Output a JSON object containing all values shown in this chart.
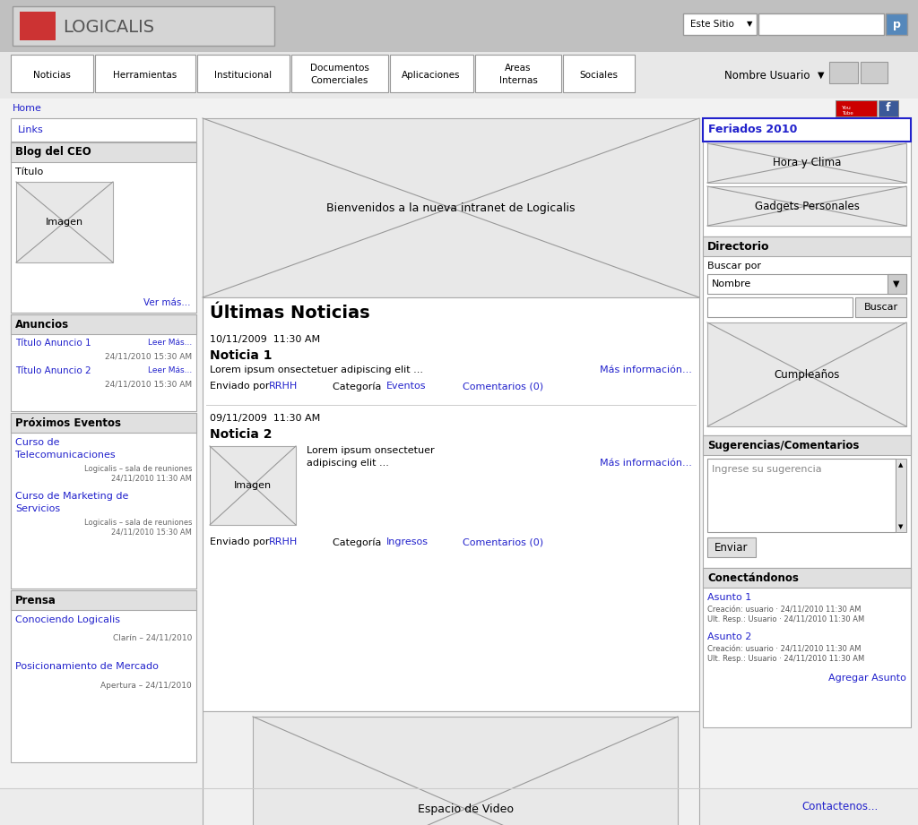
{
  "bg_color": "#c8c8c8",
  "page_bg": "#f2f2f2",
  "white": "#ffffff",
  "light_gray": "#e8e8e8",
  "border_color": "#aaaaaa",
  "link_color": "#2222cc",
  "section_hdr_bg": "#e0e0e0",
  "header_bg": "#c0c0c0",
  "nav_bg": "#e8e8e8",
  "footer_bg": "#f0f0f0",
  "logo_text": "LOGICALIS",
  "search_label": "Este Sitio",
  "nav_items": [
    "Noticias",
    "Herramientas",
    "Institucional",
    "Documentos\nComerciales",
    "Aplicaciones",
    "Areas\nInternas",
    "Sociales"
  ],
  "user_text": "Nombre Usuario",
  "home_text": "Home",
  "links_text": "Links",
  "blog_title": "Blog del CEO",
  "blog_item": "Título",
  "blog_link": "Ver más...",
  "anuncios_title": "Anuncios",
  "anuncio1": "Título Anuncio 1",
  "anuncio1_link": "Leer Más...",
  "anuncio1_date": "24/11/2010 15:30 AM",
  "anuncio2": "Título Anuncio 2",
  "anuncio2_link": "Leer Más...",
  "anuncio2_date": "24/11/2010 15:30 AM",
  "eventos_title": "Próximos Eventos",
  "evento1_line1": "Curso de",
  "evento1_line2": "Telecomunicaciones",
  "evento1_loc": "Logicalis – sala de reuniones",
  "evento1_date": "24/11/2010 11:30 AM",
  "evento2_line1": "Curso de Marketing de",
  "evento2_line2": "Servicios",
  "evento2_loc": "Logicalis – sala de reuniones",
  "evento2_date": "24/11/2010 15:30 AM",
  "prensa_title": "Prensa",
  "prensa1": "Conociendo Logicalis",
  "prensa1_sub": "Clarín – 24/11/2010",
  "prensa2": "Posicionamiento de Mercado",
  "prensa2_sub": "Apertura – 24/11/2010",
  "banner_text": "Bienvenidos a la nueva intranet de Logicalis",
  "noticias_title": "Últimas Noticias",
  "n1_date": "10/11/2009  11:30 AM",
  "n1_title": "Noticia 1",
  "n1_body": "Lorem ipsum onsectetuer adipiscing elit ...",
  "n1_more": "Más información...",
  "n1_enviado": "Enviado por ",
  "n1_rrhh": "RRHH",
  "n1_cat_label": "Categoría ",
  "n1_cat": "Eventos",
  "n1_com": "Comentarios (0)",
  "n2_date": "09/11/2009  11:30 AM",
  "n2_title": "Noticia 2",
  "n2_body1": "Lorem ipsum onsectetuer",
  "n2_body2": "adipiscing elit ...",
  "n2_more": "Más información...",
  "n2_enviado": "Enviado por ",
  "n2_rrhh": "RRHH",
  "n2_cat_label": "Categoría ",
  "n2_cat": "Ingresos",
  "n2_com": "Comentarios (0)",
  "video_text": "Espacio de Video",
  "feriados_title": "Feriados 2010",
  "hora_text": "Hora y Clima",
  "gadgets_text": "Gadgets Personales",
  "directorio_title": "Directorio",
  "buscar_por": "Buscar por",
  "nombre_text": "Nombre",
  "buscar_btn": "Buscar",
  "cumple_text": "Cumpleaños",
  "sugerencias_title": "Sugerencias/Comentarios",
  "sugerencias_ph": "Ingrese su sugerencia",
  "enviar_btn": "Enviar",
  "conectando_title": "Conectándonos",
  "asunto1": "Asunto 1",
  "asunto1_sub1": "Creación: usuario · 24/11/2010 11:30 AM",
  "asunto1_sub2": "Ult. Resp.: Usuario · 24/11/2010 11:30 AM",
  "asunto2": "Asunto 2",
  "asunto2_sub1": "Creación: usuario · 24/11/2010 11:30 AM",
  "asunto2_sub2": "Ult. Resp.: Usuario · 24/11/2010 11:30 AM",
  "agregar_asunto": "Agregar Asunto",
  "contactenos": "Contactenos..."
}
